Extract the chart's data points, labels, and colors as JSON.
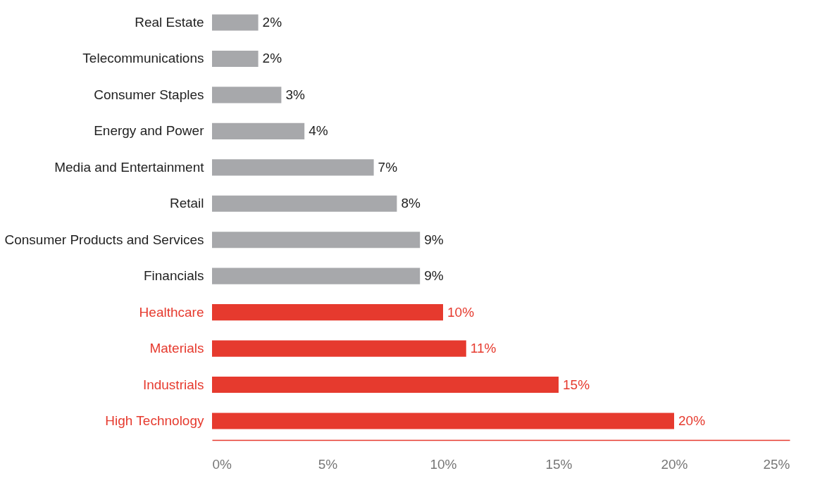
{
  "chart_data": {
    "type": "bar",
    "orientation": "horizontal",
    "categories": [
      "Real Estate",
      "Telecommunications",
      "Consumer Staples",
      "Energy and Power",
      "Media and Entertainment",
      "Retail",
      "Consumer Products and Services",
      "Financials",
      "Healthcare",
      "Materials",
      "Industrials",
      "High Technology"
    ],
    "values": [
      2,
      2,
      3,
      4,
      7,
      8,
      9,
      9,
      10,
      11,
      15,
      20
    ],
    "colors": [
      "#a7a8ab",
      "#a7a8ab",
      "#a7a8ab",
      "#a7a8ab",
      "#a7a8ab",
      "#a7a8ab",
      "#a7a8ab",
      "#a7a8ab",
      "#e63a2e",
      "#e63a2e",
      "#e63a2e",
      "#e63a2e"
    ],
    "value_labels": [
      "2%",
      "2%",
      "3%",
      "4%",
      "7%",
      "8%",
      "9%",
      "9%",
      "10%",
      "11%",
      "15%",
      "20%"
    ],
    "xlim": [
      0,
      25
    ],
    "xticks": [
      {
        "value": 0,
        "label": "0%"
      },
      {
        "value": 5,
        "label": "5%"
      },
      {
        "value": 10,
        "label": "10%"
      },
      {
        "value": 15,
        "label": "15%"
      },
      {
        "value": 20,
        "label": "20%"
      },
      {
        "value": 25,
        "label": "25%"
      }
    ],
    "grid": false
  }
}
